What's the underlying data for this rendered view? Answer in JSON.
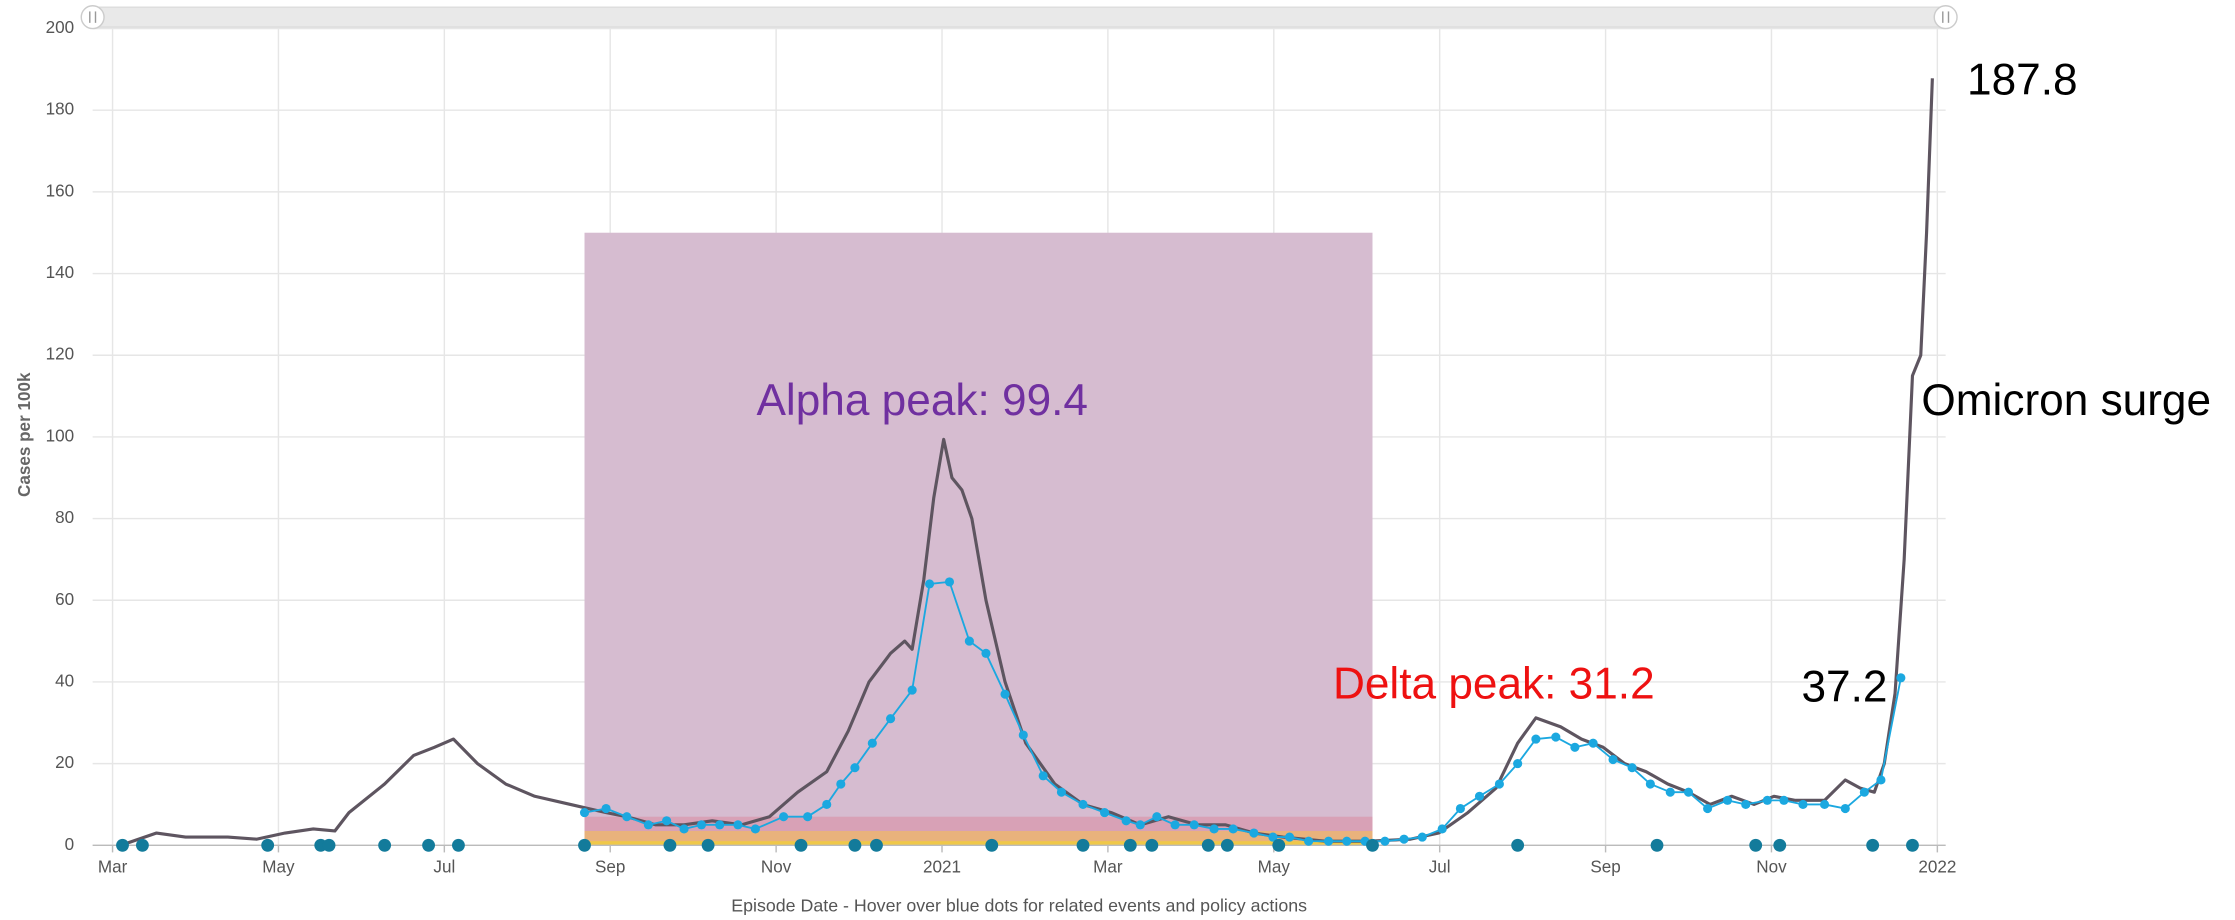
{
  "chart_data": {
    "type": "line",
    "ylabel": "Cases per 100k",
    "xlabel": "Episode Date - Hover over blue dots for related events and policy actions",
    "xlim": [
      -0.24,
      22.1
    ],
    "xticks": [
      {
        "value": 0,
        "label": "Mar"
      },
      {
        "value": 2,
        "label": "May"
      },
      {
        "value": 4,
        "label": "Jul"
      },
      {
        "value": 6,
        "label": "Sep"
      },
      {
        "value": 8,
        "label": "Nov"
      },
      {
        "value": 10,
        "label": "2021"
      },
      {
        "value": 12,
        "label": "Mar"
      },
      {
        "value": 14,
        "label": "May"
      },
      {
        "value": 16,
        "label": "Jul"
      },
      {
        "value": 18,
        "label": "Sep"
      },
      {
        "value": 20,
        "label": "Nov"
      },
      {
        "value": 22,
        "label": "2022"
      }
    ],
    "ylim": [
      0,
      200
    ],
    "yticks": [
      0,
      20,
      40,
      60,
      80,
      100,
      120,
      140,
      160,
      180,
      200
    ],
    "grid": true,
    "shaded_regions": [
      {
        "x": [
          5.69,
          15.19
        ],
        "y": [
          0,
          150
        ],
        "color": "#d6bcd0"
      },
      {
        "x": [
          5.69,
          15.19
        ],
        "y": [
          0,
          7
        ],
        "color": "#d8a1b6"
      },
      {
        "x": [
          5.69,
          15.19
        ],
        "y": [
          0,
          3.5
        ],
        "color": "#e9b27c"
      },
      {
        "x": [
          5.69,
          15.19
        ],
        "y": [
          0,
          1
        ],
        "color": "#efc848"
      }
    ],
    "series": [
      {
        "color": "#5e5560",
        "style": "line",
        "x": [
          0.1,
          0.53,
          0.88,
          1.39,
          1.74,
          2.08,
          2.42,
          2.68,
          2.85,
          3.28,
          3.63,
          3.88,
          4.11,
          4.4,
          4.74,
          5.09,
          5.52,
          5.95,
          6.2,
          6.55,
          6.89,
          7.23,
          7.58,
          7.92,
          8.26,
          8.61,
          8.87,
          9.12,
          9.38,
          9.55,
          9.64,
          9.78,
          9.9,
          10.02,
          10.12,
          10.24,
          10.36,
          10.53,
          10.76,
          11.01,
          11.36,
          11.7,
          12.04,
          12.39,
          12.73,
          13.08,
          13.42,
          13.76,
          14.11,
          14.62,
          15.14,
          15.65,
          15.99,
          16.34,
          16.68,
          16.94,
          17.16,
          17.46,
          17.71,
          17.97,
          18.23,
          18.49,
          18.75,
          19.0,
          19.26,
          19.52,
          19.79,
          20.03,
          20.29,
          20.64,
          20.89,
          21.07,
          21.24,
          21.36,
          21.49,
          21.6,
          21.7,
          21.8,
          21.87,
          21.94
        ],
        "values": [
          0,
          3,
          2,
          2,
          1.5,
          3,
          4,
          3.5,
          8,
          15,
          22,
          24,
          26,
          20,
          15,
          12,
          10,
          8,
          7,
          5,
          5,
          6,
          5,
          7,
          13,
          18,
          28,
          40,
          47,
          50,
          48,
          65,
          85,
          99.4,
          90,
          87,
          80,
          60,
          40,
          25,
          15,
          10,
          8,
          5,
          7,
          5,
          5,
          3,
          2,
          1,
          1,
          1.5,
          3,
          8,
          14,
          25,
          31.2,
          29,
          26,
          24,
          20,
          18,
          15,
          13,
          10,
          12,
          10,
          12,
          11,
          11,
          16,
          14,
          13,
          20,
          37.2,
          70,
          115,
          120,
          150,
          187.8
        ]
      },
      {
        "color": "#1ba8e0",
        "style": "line-dots",
        "x": [
          5.69,
          5.95,
          6.2,
          6.46,
          6.68,
          6.89,
          7.1,
          7.32,
          7.54,
          7.75,
          8.09,
          8.38,
          8.61,
          8.78,
          8.95,
          9.16,
          9.38,
          9.64,
          9.85,
          10.09,
          10.33,
          10.53,
          10.76,
          10.98,
          11.22,
          11.44,
          11.7,
          11.96,
          12.22,
          12.39,
          12.59,
          12.81,
          13.04,
          13.28,
          13.51,
          13.76,
          13.99,
          14.19,
          14.42,
          14.66,
          14.88,
          15.1,
          15.34,
          15.57,
          15.79,
          16.03,
          16.25,
          16.48,
          16.72,
          16.94,
          17.16,
          17.4,
          17.63,
          17.85,
          18.09,
          18.32,
          18.54,
          18.78,
          19.0,
          19.23,
          19.47,
          19.69,
          19.95,
          20.15,
          20.38,
          20.64,
          20.89,
          21.12,
          21.32,
          21.56
        ],
        "values": [
          8,
          9,
          7,
          5,
          6,
          4,
          5,
          5,
          5,
          4,
          7,
          7,
          10,
          15,
          19,
          25,
          31,
          38,
          64,
          64.5,
          50,
          47,
          37,
          27,
          17,
          13,
          10,
          8,
          6,
          5,
          7,
          5,
          5,
          4,
          4,
          3,
          2,
          2,
          1,
          1,
          1,
          1,
          1,
          1.5,
          2,
          4,
          9,
          12,
          15,
          20,
          26,
          26.5,
          24,
          25,
          21,
          19,
          15,
          13,
          13,
          9,
          11,
          10,
          11,
          11,
          10,
          10,
          9,
          13,
          16,
          41
        ]
      },
      {
        "color": "#137b9b",
        "style": "events",
        "x": [
          0.12,
          0.36,
          1.87,
          2.51,
          2.61,
          3.28,
          3.81,
          4.17,
          5.69,
          6.72,
          7.18,
          8.3,
          8.95,
          9.21,
          10.6,
          11.7,
          12.27,
          12.53,
          13.21,
          13.44,
          14.06,
          15.19,
          16.94,
          18.62,
          19.81,
          20.1,
          21.22,
          21.7
        ],
        "values": [
          0,
          0,
          0,
          0,
          0,
          0,
          0,
          0,
          0,
          0,
          0,
          0,
          0,
          0,
          0,
          0,
          0,
          0,
          0,
          0,
          0,
          0,
          0,
          0,
          0,
          0,
          0,
          0
        ]
      }
    ],
    "annotations": [
      {
        "text": "Alpha peak: 99.4",
        "color": "#7030a0"
      },
      {
        "text": "Delta peak: 31.2",
        "color": "#ee1111"
      },
      {
        "text": "37.2",
        "color": "#000000"
      },
      {
        "text": "187.8",
        "color": "#000000"
      },
      {
        "text": "Omicron surge",
        "color": "#000000"
      }
    ]
  }
}
